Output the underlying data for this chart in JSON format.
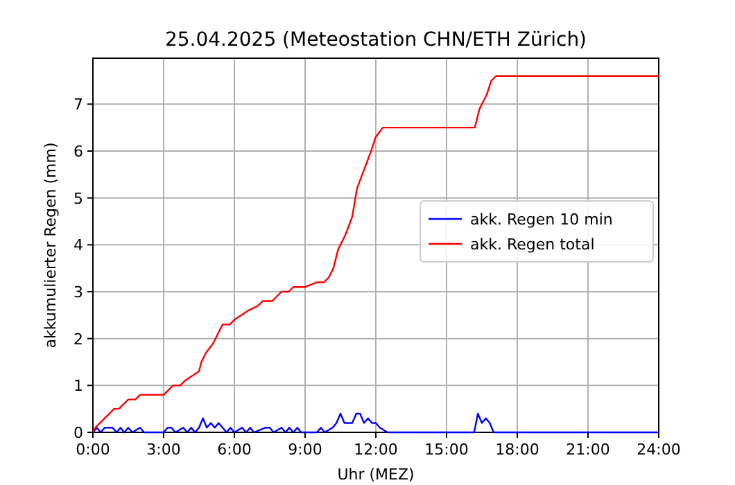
{
  "chart_data": {
    "type": "line",
    "title": "25.04.2025  (Meteostation CHN/ETH Zürich)",
    "xlabel": "Uhr (MEZ)",
    "ylabel": "akkumulierter Regen (mm)",
    "xlim": [
      0,
      24
    ],
    "ylim": [
      0,
      7.98
    ],
    "xticks": [
      {
        "value": 0,
        "label": "0:00"
      },
      {
        "value": 3,
        "label": "3:00"
      },
      {
        "value": 6,
        "label": "6:00"
      },
      {
        "value": 9,
        "label": "9:00"
      },
      {
        "value": 12,
        "label": "12:00"
      },
      {
        "value": 15,
        "label": "15:00"
      },
      {
        "value": 18,
        "label": "18:00"
      },
      {
        "value": 21,
        "label": "21:00"
      },
      {
        "value": 24,
        "label": "24:00"
      }
    ],
    "yticks": [
      0,
      1,
      2,
      3,
      4,
      5,
      6,
      7
    ],
    "grid": true,
    "legend": "right",
    "series": [
      {
        "name": "akk. Regen 10 min",
        "color": "#0000ff",
        "x": [
          0,
          0.17,
          0.33,
          0.5,
          0.83,
          1,
          1.17,
          1.33,
          1.5,
          1.67,
          2,
          2.17,
          3,
          3.17,
          3.33,
          3.5,
          3.83,
          4,
          4.17,
          4.33,
          4.5,
          4.67,
          4.83,
          5,
          5.17,
          5.33,
          5.5,
          5.67,
          5.83,
          6,
          6.33,
          6.5,
          6.67,
          6.83,
          7.33,
          7.5,
          7.67,
          8,
          8.17,
          8.33,
          8.5,
          8.67,
          8.83,
          9.5,
          9.67,
          9.83,
          10.17,
          10.33,
          10.5,
          10.67,
          11,
          11.17,
          11.33,
          11.5,
          11.67,
          11.83,
          12,
          12.17,
          12.5,
          16.17,
          16.33,
          16.5,
          16.67,
          16.83,
          17,
          24
        ],
        "values": [
          0,
          0.1,
          0,
          0.1,
          0.1,
          0,
          0.1,
          0,
          0.1,
          0,
          0.1,
          0,
          0,
          0.1,
          0.1,
          0,
          0.1,
          0,
          0.1,
          0,
          0.1,
          0.3,
          0.1,
          0.2,
          0.1,
          0.2,
          0.1,
          0,
          0.1,
          0,
          0.1,
          0,
          0.1,
          0,
          0.1,
          0.1,
          0,
          0.1,
          0,
          0.1,
          0,
          0.1,
          0,
          0,
          0.1,
          0,
          0.1,
          0.2,
          0.4,
          0.2,
          0.2,
          0.4,
          0.4,
          0.2,
          0.3,
          0.2,
          0.2,
          0.1,
          0,
          0,
          0.4,
          0.2,
          0.3,
          0.2,
          0,
          0
        ]
      },
      {
        "name": "akk. Regen total",
        "color": "#ff0000",
        "x": [
          0,
          0.1,
          0.3,
          0.5,
          0.7,
          0.9,
          1.1,
          1.3,
          1.5,
          1.8,
          2,
          3,
          3.2,
          3.4,
          3.7,
          3.9,
          4.2,
          4.5,
          4.6,
          4.8,
          5.1,
          5.3,
          5.5,
          5.8,
          6,
          6.3,
          6.6,
          7,
          7.2,
          7.6,
          7.8,
          8,
          8.3,
          8.5,
          9,
          9.5,
          9.8,
          10,
          10.2,
          10.4,
          10.7,
          11,
          11.2,
          11.5,
          11.8,
          12,
          12.3,
          16.2,
          16.4,
          16.7,
          16.9,
          17.1,
          24
        ],
        "values": [
          0,
          0.1,
          0.2,
          0.3,
          0.4,
          0.5,
          0.5,
          0.6,
          0.7,
          0.7,
          0.8,
          0.8,
          0.9,
          1,
          1,
          1.1,
          1.2,
          1.3,
          1.5,
          1.7,
          1.9,
          2.1,
          2.3,
          2.3,
          2.4,
          2.5,
          2.6,
          2.7,
          2.8,
          2.8,
          2.9,
          3,
          3,
          3.1,
          3.1,
          3.2,
          3.2,
          3.3,
          3.5,
          3.9,
          4.2,
          4.6,
          5.2,
          5.6,
          6,
          6.3,
          6.5,
          6.5,
          6.9,
          7.2,
          7.5,
          7.6,
          7.6
        ]
      }
    ]
  }
}
